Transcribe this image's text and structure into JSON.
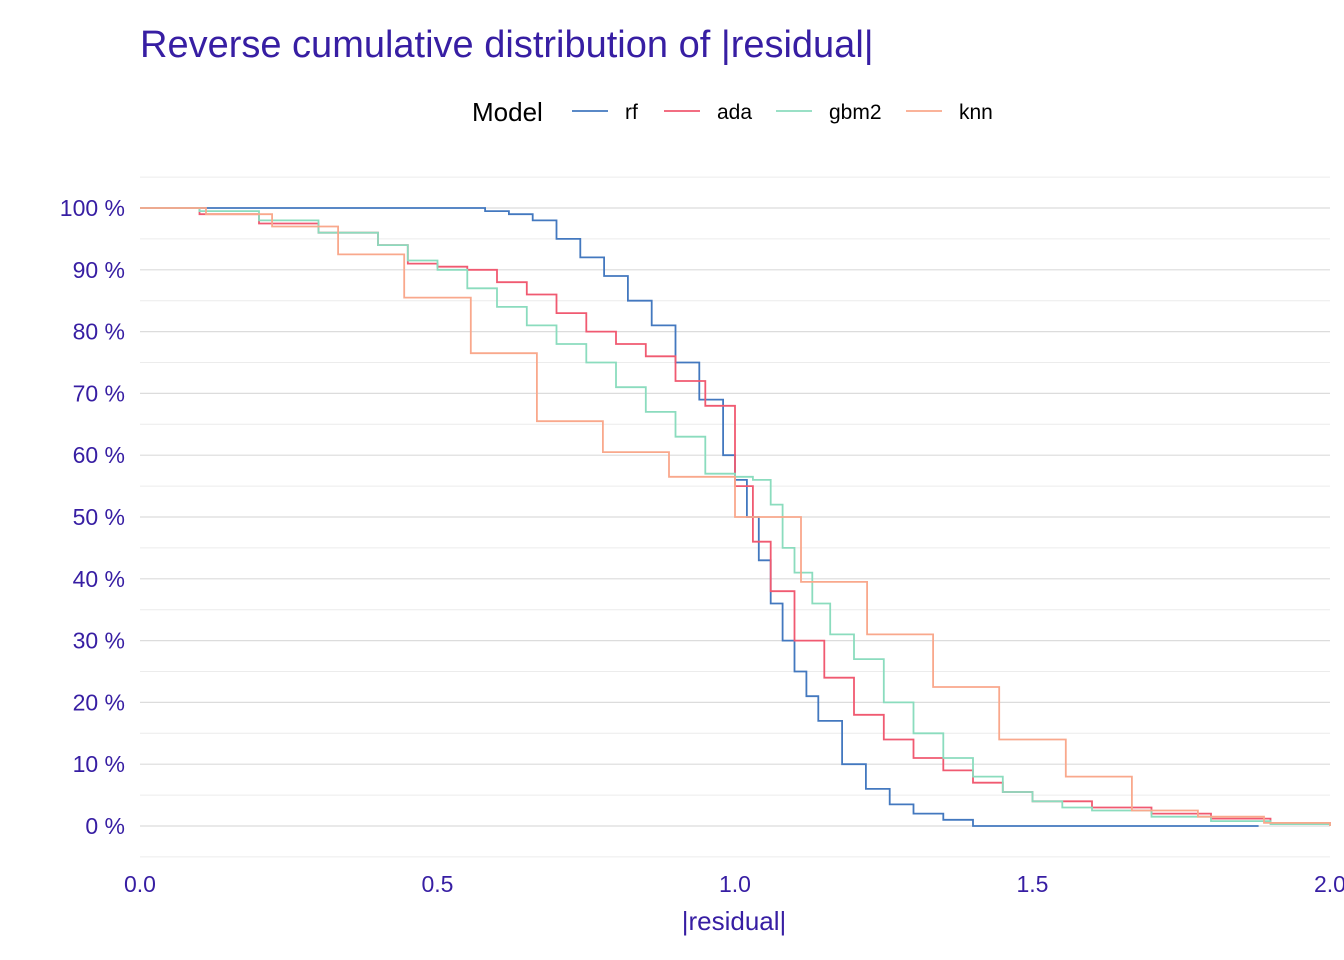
{
  "chart_data": {
    "type": "line",
    "title": "Reverse cumulative distribution of |residual|",
    "xlabel": "|residual|",
    "ylabel": "",
    "xlim": [
      0,
      2
    ],
    "ylim": [
      0,
      1
    ],
    "x_ticks": [
      0,
      0.5,
      1,
      1.5,
      2
    ],
    "x_tick_labels": [
      "0.0",
      "0.5",
      "1.0",
      "1.5",
      "2.0"
    ],
    "y_ticks": [
      0,
      0.1,
      0.2,
      0.3,
      0.4,
      0.5,
      0.6,
      0.7,
      0.8,
      0.9,
      1.0
    ],
    "y_tick_labels": [
      "0 %",
      "10 %",
      "20 %",
      "30 %",
      "40 %",
      "50 %",
      "60 %",
      "70 %",
      "80 %",
      "90 %",
      "100 %"
    ],
    "grid": true,
    "step": true,
    "legend": {
      "title": "Model",
      "position": "top"
    },
    "series": [
      {
        "name": "rf",
        "color": "#4378bf",
        "x": [
          0,
          0.58,
          0.62,
          0.66,
          0.7,
          0.74,
          0.78,
          0.82,
          0.86,
          0.9,
          0.94,
          0.98,
          1.0,
          1.02,
          1.04,
          1.06,
          1.08,
          1.1,
          1.12,
          1.14,
          1.18,
          1.22,
          1.26,
          1.3,
          1.35,
          1.4,
          1.6,
          1.88
        ],
        "y": [
          1.0,
          0.995,
          0.99,
          0.98,
          0.95,
          0.92,
          0.89,
          0.85,
          0.81,
          0.75,
          0.69,
          0.6,
          0.56,
          0.5,
          0.43,
          0.36,
          0.3,
          0.25,
          0.21,
          0.17,
          0.1,
          0.06,
          0.035,
          0.02,
          0.01,
          0.0,
          0.0,
          0.0
        ]
      },
      {
        "name": "ada",
        "color": "#f05a71",
        "x": [
          0,
          0.1,
          0.2,
          0.3,
          0.4,
          0.45,
          0.5,
          0.55,
          0.6,
          0.65,
          0.7,
          0.75,
          0.8,
          0.85,
          0.9,
          0.95,
          1.0,
          1.03,
          1.06,
          1.1,
          1.15,
          1.2,
          1.25,
          1.3,
          1.35,
          1.4,
          1.45,
          1.5,
          1.6,
          1.7,
          1.8,
          1.9,
          2.0
        ],
        "y": [
          1.0,
          0.99,
          0.975,
          0.96,
          0.94,
          0.91,
          0.905,
          0.9,
          0.88,
          0.86,
          0.83,
          0.8,
          0.78,
          0.76,
          0.72,
          0.68,
          0.55,
          0.46,
          0.38,
          0.3,
          0.24,
          0.18,
          0.14,
          0.11,
          0.09,
          0.07,
          0.055,
          0.04,
          0.03,
          0.02,
          0.012,
          0.005,
          0.0
        ]
      },
      {
        "name": "gbm2",
        "color": "#8bdcbe",
        "x": [
          0,
          0.1,
          0.2,
          0.3,
          0.4,
          0.45,
          0.5,
          0.55,
          0.6,
          0.65,
          0.7,
          0.75,
          0.8,
          0.85,
          0.9,
          0.95,
          1.0,
          1.03,
          1.06,
          1.08,
          1.1,
          1.13,
          1.16,
          1.2,
          1.25,
          1.3,
          1.35,
          1.4,
          1.45,
          1.5,
          1.55,
          1.6,
          1.7,
          1.8,
          1.9,
          2.0
        ],
        "y": [
          1.0,
          0.995,
          0.98,
          0.96,
          0.94,
          0.915,
          0.9,
          0.87,
          0.84,
          0.81,
          0.78,
          0.75,
          0.71,
          0.67,
          0.63,
          0.57,
          0.565,
          0.56,
          0.52,
          0.45,
          0.41,
          0.36,
          0.31,
          0.27,
          0.2,
          0.15,
          0.11,
          0.08,
          0.055,
          0.04,
          0.03,
          0.025,
          0.015,
          0.008,
          0.003,
          0.0
        ]
      },
      {
        "name": "knn",
        "color": "#f9a88c",
        "x": [
          0,
          0.111,
          0.222,
          0.333,
          0.444,
          0.556,
          0.667,
          0.778,
          0.889,
          1.0,
          1.111,
          1.222,
          1.333,
          1.444,
          1.556,
          1.667,
          1.778,
          1.889,
          2.0
        ],
        "y": [
          1.0,
          0.99,
          0.97,
          0.925,
          0.855,
          0.765,
          0.655,
          0.605,
          0.565,
          0.5,
          0.395,
          0.31,
          0.225,
          0.14,
          0.08,
          0.025,
          0.015,
          0.005,
          0.0
        ]
      }
    ]
  }
}
